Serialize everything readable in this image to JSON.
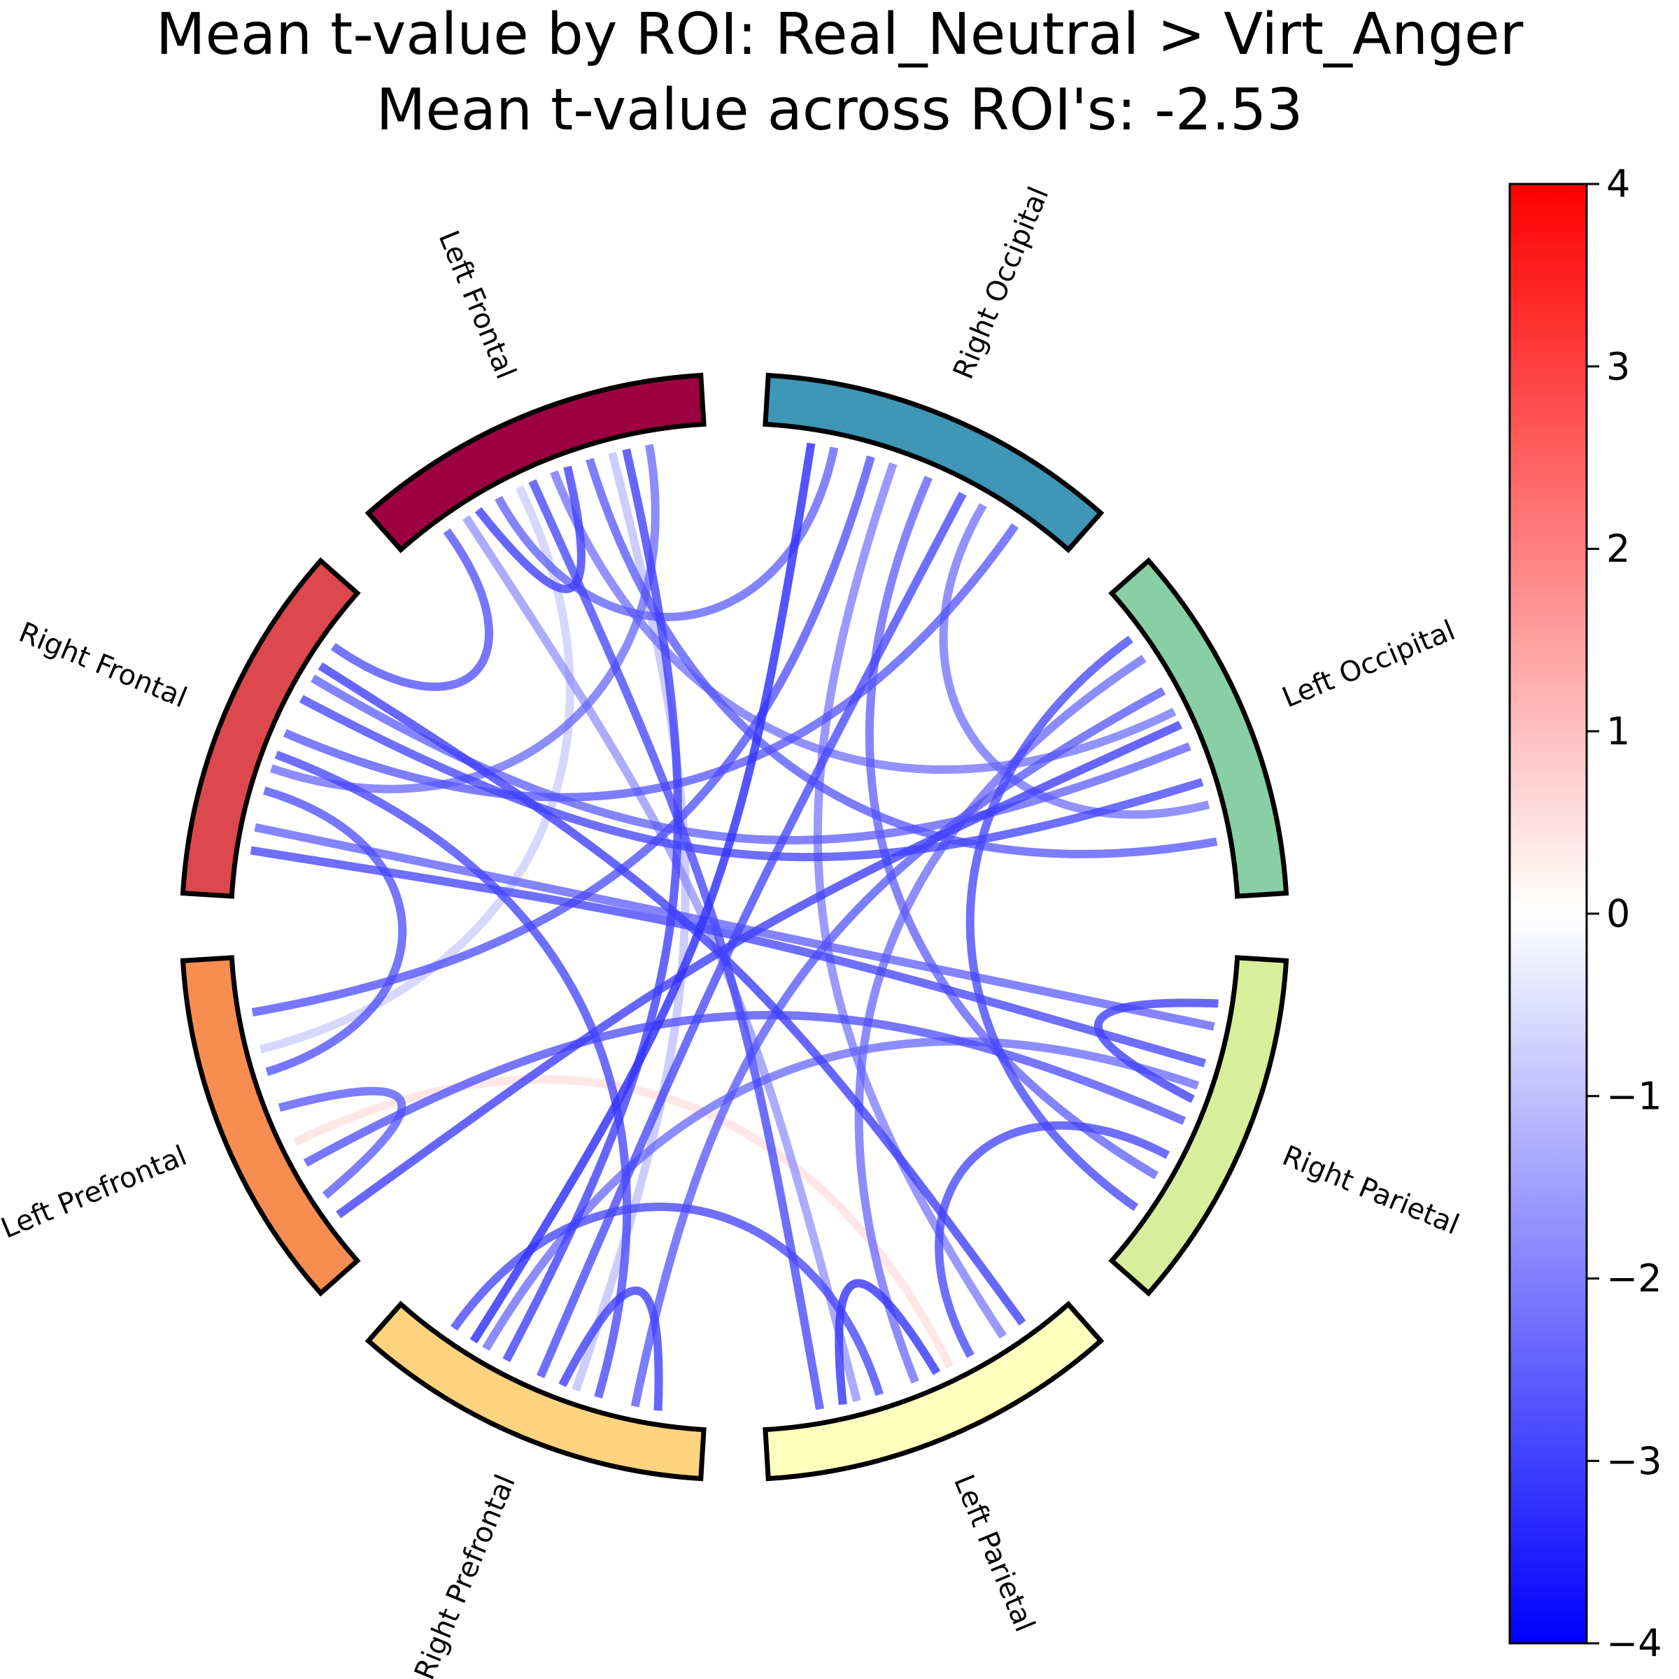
{
  "chart_data": {
    "type": "chord",
    "title": "Mean t-value by ROI: Real_Neutral > Virt_Anger",
    "subtitle": "Mean t-value across ROI's: -2.53",
    "regions": [
      {
        "name": "Left Frontal",
        "color": "#9e0142"
      },
      {
        "name": "Right Occipital",
        "color": "#3f96b7"
      },
      {
        "name": "Left Occipital",
        "color": "#88cfa4"
      },
      {
        "name": "Right Parietal",
        "color": "#d7ef9b"
      },
      {
        "name": "Left Parietal",
        "color": "#ffffbe"
      },
      {
        "name": "Right Prefrontal",
        "color": "#fdd380"
      },
      {
        "name": "Left Prefrontal",
        "color": "#f88d52"
      },
      {
        "name": "Right Frontal",
        "color": "#dc484c"
      }
    ],
    "connections": [
      {
        "from": "Left Frontal",
        "to": "Right Frontal",
        "t": -2.5
      },
      {
        "from": "Left Frontal",
        "to": "Right Frontal",
        "t": -2.8
      },
      {
        "from": "Left Frontal",
        "to": "Left Occipital",
        "t": -2.4
      },
      {
        "from": "Left Frontal",
        "to": "Left Occipital",
        "t": -2.7
      },
      {
        "from": "Left Frontal",
        "to": "Right Prefrontal",
        "t": -1.4
      },
      {
        "from": "Left Frontal",
        "to": "Right Prefrontal",
        "t": -3.0
      },
      {
        "from": "Left Frontal",
        "to": "Left Parietal",
        "t": -2.0
      },
      {
        "from": "Left Frontal",
        "to": "Left Parietal",
        "t": -2.9
      },
      {
        "from": "Left Frontal",
        "to": "Left Prefrontal",
        "t": -1.2
      },
      {
        "from": "Left Frontal",
        "to": "Right Occipital",
        "t": -2.6
      },
      {
        "from": "Left Frontal",
        "to": "Left Frontal",
        "t": -3.0
      },
      {
        "from": "Right Occipital",
        "to": "Right Frontal",
        "t": -2.7
      },
      {
        "from": "Right Occipital",
        "to": "Left Occipital",
        "t": -2.4
      },
      {
        "from": "Right Occipital",
        "to": "Right Parietal",
        "t": -2.6
      },
      {
        "from": "Right Occipital",
        "to": "Left Parietal",
        "t": -2.3
      },
      {
        "from": "Right Occipital",
        "to": "Right Prefrontal",
        "t": -3.2
      },
      {
        "from": "Right Occipital",
        "to": "Right Prefrontal",
        "t": -2.9
      },
      {
        "from": "Right Occipital",
        "to": "Left Prefrontal",
        "t": -2.8
      },
      {
        "from": "Left Occipital",
        "to": "Right Frontal",
        "t": -2.9
      },
      {
        "from": "Left Occipital",
        "to": "Right Frontal",
        "t": -2.6
      },
      {
        "from": "Left Occipital",
        "to": "Left Prefrontal",
        "t": -3.0
      },
      {
        "from": "Left Occipital",
        "to": "Right Parietal",
        "t": -2.9
      },
      {
        "from": "Left Occipital",
        "to": "Left Parietal",
        "t": -2.5
      },
      {
        "from": "Left Occipital",
        "to": "Right Prefrontal",
        "t": -2.7
      },
      {
        "from": "Right Parietal",
        "to": "Right Frontal",
        "t": -2.9
      },
      {
        "from": "Right Parietal",
        "to": "Right Frontal",
        "t": -2.6
      },
      {
        "from": "Right Parietal",
        "to": "Left Prefrontal",
        "t": -2.8
      },
      {
        "from": "Right Parietal",
        "to": "Right Prefrontal",
        "t": -2.5
      },
      {
        "from": "Right Parietal",
        "to": "Left Parietal",
        "t": -2.9
      },
      {
        "from": "Right Parietal",
        "to": "Right Parietal",
        "t": -3.0
      },
      {
        "from": "Left Parietal",
        "to": "Left Prefrontal",
        "t": 0.8
      },
      {
        "from": "Left Parietal",
        "to": "Right Prefrontal",
        "t": -2.9
      },
      {
        "from": "Left Parietal",
        "to": "Right Frontal",
        "t": -3.0
      },
      {
        "from": "Left Parietal",
        "to": "Left Parietal",
        "t": -3.1
      },
      {
        "from": "Right Prefrontal",
        "to": "Right Frontal",
        "t": -2.9
      },
      {
        "from": "Right Prefrontal",
        "to": "Right Prefrontal",
        "t": -3.0
      },
      {
        "from": "Left Prefrontal",
        "to": "Right Frontal",
        "t": -2.8
      },
      {
        "from": "Left Prefrontal",
        "to": "Left Prefrontal",
        "t": -2.7
      }
    ],
    "colorbar": {
      "min": -4,
      "max": 4,
      "ticks": [
        "−4",
        "−3",
        "−2",
        "−1",
        "0",
        "1",
        "2",
        "3",
        "4"
      ],
      "colormap": "bwr"
    }
  }
}
